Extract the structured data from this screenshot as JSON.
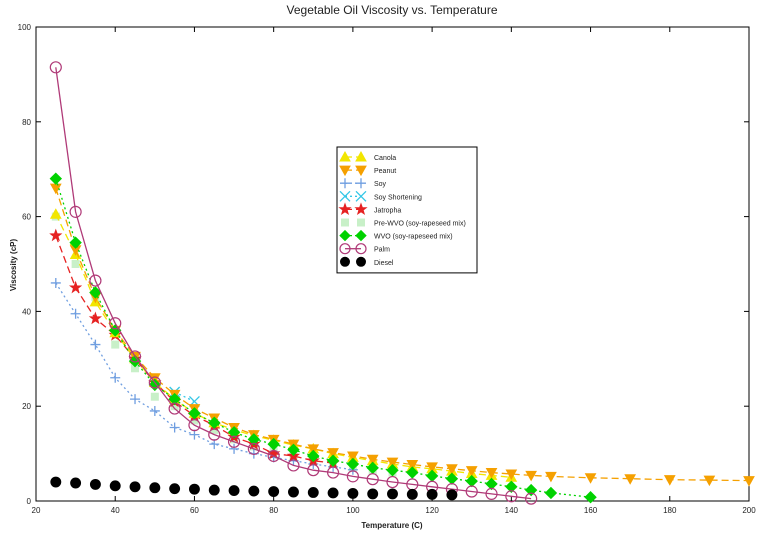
{
  "chart_data": {
    "type": "line",
    "title": "Vegetable Oil Viscosity vs. Temperature",
    "xlabel": "Temperature (C)",
    "ylabel": "Viscosity (cP)",
    "xlim": [
      20,
      200
    ],
    "ylim": [
      0,
      100
    ],
    "xticks": [
      20,
      40,
      60,
      80,
      100,
      120,
      140,
      160,
      180,
      200
    ],
    "yticks": [
      0,
      20,
      40,
      60,
      80,
      100
    ],
    "grid": false,
    "legend_position": "center",
    "series": [
      {
        "name": "Canola",
        "color": "#f2e600",
        "marker": "triangle-up",
        "line": "dash",
        "x": [
          25,
          30,
          35,
          40,
          45,
          50,
          55,
          60,
          65,
          70,
          75,
          80,
          85,
          90,
          95,
          100,
          105,
          110,
          115,
          120,
          125,
          130,
          135,
          140
        ],
        "y": [
          60.5,
          52,
          42,
          35.5,
          30,
          25,
          21.5,
          18.5,
          16.5,
          15,
          13.8,
          12.8,
          11.8,
          11,
          10,
          9.2,
          8.5,
          7.8,
          7.2,
          6.8,
          6.3,
          5.8,
          5.4,
          5
        ]
      },
      {
        "name": "Peanut",
        "color": "#f5a000",
        "marker": "triangle-down",
        "line": "dash",
        "x": [
          25,
          30,
          35,
          40,
          45,
          50,
          55,
          60,
          65,
          70,
          75,
          80,
          85,
          90,
          95,
          100,
          105,
          110,
          115,
          120,
          125,
          130,
          135,
          140,
          145,
          150,
          160,
          170,
          180,
          190,
          200
        ],
        "y": [
          66,
          53,
          43,
          36,
          30.5,
          26,
          22.5,
          19.5,
          17.5,
          15.5,
          14,
          13,
          12,
          11,
          10.2,
          9.5,
          8.8,
          8.2,
          7.7,
          7.2,
          6.8,
          6.4,
          6,
          5.7,
          5.4,
          5.2,
          4.9,
          4.7,
          4.5,
          4.4,
          4.3
        ]
      },
      {
        "name": "Soy",
        "color": "#6f9ee0",
        "marker": "plus",
        "line": "dot",
        "x": [
          25,
          30,
          35,
          40,
          45,
          50,
          55,
          60,
          65,
          70,
          75,
          80,
          85,
          90,
          95,
          100
        ],
        "y": [
          46,
          39.5,
          33,
          26,
          21.5,
          19,
          15.5,
          14,
          12,
          11,
          10,
          9.2,
          8.5,
          7.8,
          7.2,
          6.6
        ]
      },
      {
        "name": "Soy Shortening",
        "color": "#33c6e6",
        "marker": "x-circle",
        "line": "dot",
        "x": [
          55,
          60
        ],
        "y": [
          23,
          21
        ]
      },
      {
        "name": "Jatropha",
        "color": "#e62222",
        "marker": "star",
        "line": "dash",
        "x": [
          25,
          30,
          35,
          40,
          45,
          50,
          55,
          60,
          65,
          70,
          75,
          80,
          85,
          90,
          95
        ],
        "y": [
          56,
          45,
          38.5,
          35,
          30,
          25,
          21,
          18,
          16,
          13.5,
          12,
          10,
          9.5,
          8.5,
          8
        ]
      },
      {
        "name": "Pre-WVO (soy-rapeseed mix)",
        "color": "#c8f0c8",
        "marker": "square",
        "line": "none",
        "x": [
          25,
          30,
          35,
          40,
          45,
          50,
          55,
          60,
          65,
          70,
          75,
          80,
          85,
          90,
          95,
          100,
          105,
          110
        ],
        "y": [
          60,
          50,
          43,
          33,
          28,
          22,
          20,
          17,
          15,
          13,
          11.5,
          10.5,
          9.5,
          8.5,
          7.8,
          7,
          6.5,
          6
        ]
      },
      {
        "name": "WVO (soy-rapeseed mix)",
        "color": "#00d200",
        "marker": "diamond",
        "line": "dot",
        "x": [
          25,
          30,
          35,
          40,
          45,
          50,
          55,
          60,
          65,
          70,
          75,
          80,
          85,
          90,
          95,
          100,
          105,
          110,
          115,
          120,
          125,
          130,
          135,
          140,
          145,
          150,
          160
        ],
        "y": [
          68,
          54.5,
          44,
          36,
          29.5,
          24.5,
          21.5,
          18.5,
          16.5,
          14.5,
          13,
          12,
          10.8,
          9.5,
          8.5,
          7.8,
          7,
          6.5,
          6,
          5.3,
          4.7,
          4.2,
          3.6,
          3,
          2.3,
          1.7,
          0.8
        ]
      },
      {
        "name": "Palm",
        "color": "#b03a78",
        "marker": "circle-open",
        "line": "solid",
        "x": [
          25,
          30,
          35,
          40,
          45,
          50,
          55,
          60,
          65,
          70,
          75,
          80,
          85,
          90,
          95,
          100,
          105,
          110,
          115,
          120,
          125,
          130,
          135,
          140,
          145
        ],
        "y": [
          91.5,
          61,
          46.5,
          37.5,
          30.5,
          25,
          19.5,
          16,
          14,
          12.5,
          11,
          9.5,
          7.5,
          6.5,
          6,
          5.2,
          4.6,
          4,
          3.5,
          3,
          2.5,
          2,
          1.5,
          1,
          0.5
        ]
      },
      {
        "name": "Diesel",
        "color": "#000000",
        "marker": "circle-filled",
        "line": "none",
        "x": [
          25,
          30,
          35,
          40,
          45,
          50,
          55,
          60,
          65,
          70,
          75,
          80,
          85,
          90,
          95,
          100,
          105,
          110,
          115,
          120,
          125
        ],
        "y": [
          4,
          3.8,
          3.5,
          3.2,
          3,
          2.8,
          2.6,
          2.5,
          2.3,
          2.2,
          2.1,
          2,
          1.9,
          1.8,
          1.7,
          1.6,
          1.5,
          1.5,
          1.4,
          1.4,
          1.3
        ]
      }
    ]
  }
}
